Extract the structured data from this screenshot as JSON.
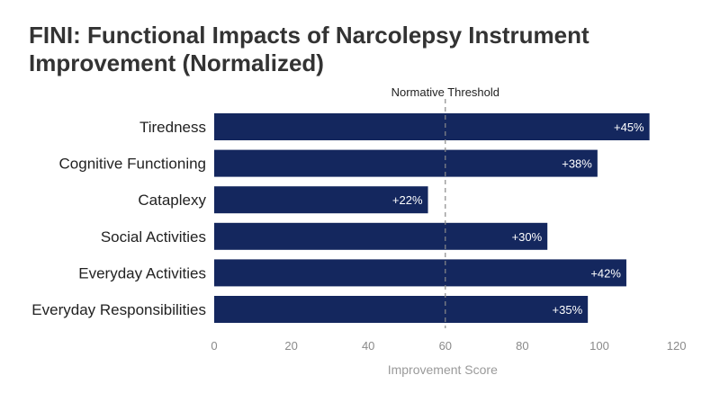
{
  "chart_data": {
    "type": "bar",
    "orientation": "horizontal",
    "title": "FINI: Functional Impacts of Narcolepsy Instrument Improvement (Normalized)",
    "xlabel": "Improvement Score",
    "ylabel": "",
    "xlim": [
      0,
      120
    ],
    "xticks": [
      0,
      20,
      40,
      60,
      80,
      100,
      120
    ],
    "categories": [
      "Tiredness",
      "Cognitive Functioning",
      "Cataplexy",
      "Social Activities",
      "Everyday Activities",
      "Everyday Responsibilities"
    ],
    "values": [
      113,
      99.5,
      55.5,
      86.5,
      107,
      97
    ],
    "data_labels": [
      "+45%",
      "+38%",
      "+22%",
      "+30%",
      "+42%",
      "+35%"
    ],
    "bar_color": "#14275e",
    "reference_line": {
      "value": 60,
      "label": "Normative Threshold",
      "style": "dashed",
      "color": "#8a8a8a"
    },
    "grid": false,
    "legend": "none"
  }
}
